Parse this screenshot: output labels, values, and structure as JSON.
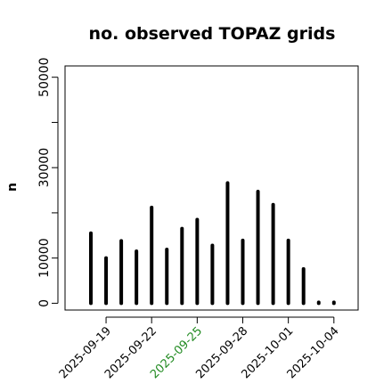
{
  "chart_data": {
    "type": "bar",
    "title": "no. observed TOPAZ grids",
    "xlabel": "",
    "ylabel": "n",
    "ylim": [
      -1500,
      52500
    ],
    "yticks": [
      0,
      10000,
      20000,
      30000,
      40000,
      50000
    ],
    "ytick_labels": [
      "0",
      "10000",
      "",
      "30000",
      "",
      "50000"
    ],
    "grid": false,
    "dates": [
      "2025-09-18",
      "2025-09-19",
      "2025-09-20",
      "2025-09-21",
      "2025-09-22",
      "2025-09-23",
      "2025-09-24",
      "2025-09-25",
      "2025-09-26",
      "2025-09-27",
      "2025-09-28",
      "2025-09-29",
      "2025-09-30",
      "2025-10-01",
      "2025-10-02",
      "2025-10-03",
      "2025-10-04"
    ],
    "values": [
      15500,
      10000,
      13800,
      11500,
      21200,
      11900,
      16500,
      18500,
      12800,
      26600,
      13900,
      24700,
      21800,
      13900,
      7600,
      200,
      200
    ],
    "xtick_labels": [
      {
        "date": "2025-09-19",
        "label": "2025-09-19",
        "color": "#000000"
      },
      {
        "date": "2025-09-22",
        "label": "2025-09-22",
        "color": "#000000"
      },
      {
        "date": "2025-09-25",
        "label": "2025-09-25",
        "color": "#228B22"
      },
      {
        "date": "2025-09-28",
        "label": "2025-09-28",
        "color": "#000000"
      },
      {
        "date": "2025-10-01",
        "label": "2025-10-01",
        "color": "#000000"
      },
      {
        "date": "2025-10-04",
        "label": "2025-10-04",
        "color": "#000000"
      }
    ],
    "bar_color": "#000000",
    "highlight_color": "#228B22"
  }
}
